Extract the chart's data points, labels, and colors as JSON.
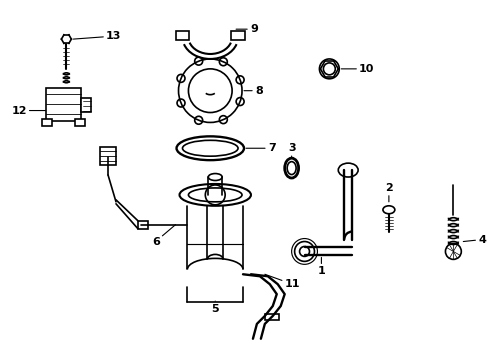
{
  "background_color": "#ffffff",
  "line_color": "#000000",
  "lw": 1.2,
  "figsize": [
    4.9,
    3.6
  ],
  "dpi": 100
}
